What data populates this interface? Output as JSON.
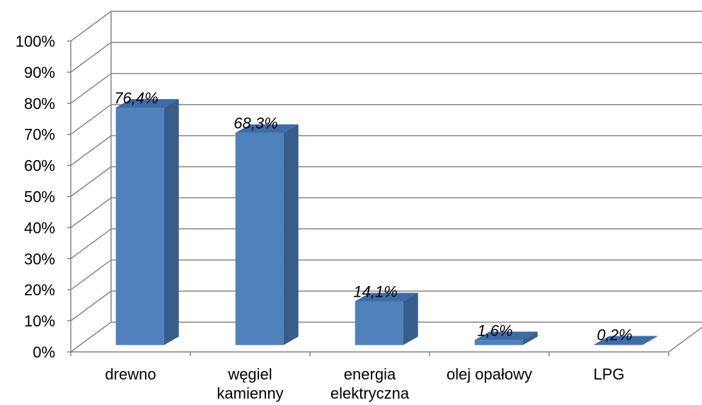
{
  "chart_data": {
    "type": "bar",
    "title": "",
    "xlabel": "",
    "ylabel": "",
    "ylim": [
      0,
      100
    ],
    "y_ticks": [
      "0%",
      "10%",
      "20%",
      "30%",
      "40%",
      "50%",
      "60%",
      "70%",
      "80%",
      "90%",
      "100%"
    ],
    "categories": [
      [
        "drewno"
      ],
      [
        "węgiel",
        "kamienny"
      ],
      [
        "energia",
        "elektryczna"
      ],
      [
        "olej opałowy"
      ],
      [
        "LPG"
      ]
    ],
    "values": [
      76.4,
      68.3,
      14.1,
      1.6,
      0.2
    ],
    "data_labels": [
      "76,4%",
      "68,3%",
      "14,1%",
      "1,6%",
      "0,2%"
    ],
    "grid": true,
    "legend": "none",
    "style": "3d-column",
    "colors": {
      "bar_front": "#4F81BD",
      "bar_side": "#385D8A",
      "bar_top": "#3F6CA6",
      "grid": "#868686"
    }
  }
}
